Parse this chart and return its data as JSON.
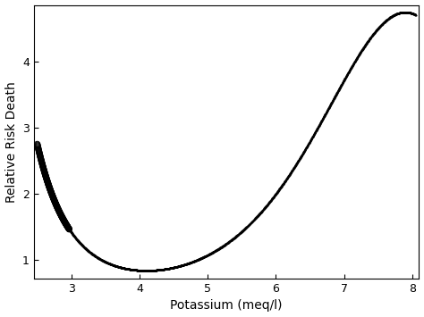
{
  "xlabel": "Potassium (meq/l)",
  "ylabel": "Relative Risk Death",
  "xlim": [
    2.45,
    8.1
  ],
  "ylim": [
    0.72,
    4.85
  ],
  "xticks": [
    3,
    4,
    5,
    6,
    7,
    8
  ],
  "yticks": [
    1,
    2,
    3,
    4
  ],
  "x_start": 2.5,
  "x_end": 8.05,
  "n_points": 2000,
  "min_x": 3.9,
  "min_y": 0.855,
  "x_left_ref": 2.5,
  "y_left_ref": 2.75,
  "x_right_ref": 8.05,
  "y_right_ref": 4.7,
  "sparse_threshold": 2.97,
  "dense_marker_size": 2.5,
  "open_marker_size": 4.5,
  "open_linewidth": 0.7,
  "line_color": "#000000",
  "background_color": "#ffffff",
  "xlabel_fontsize": 10,
  "ylabel_fontsize": 10,
  "tick_fontsize": 9,
  "fig_width": 4.74,
  "fig_height": 3.55,
  "dpi": 100
}
